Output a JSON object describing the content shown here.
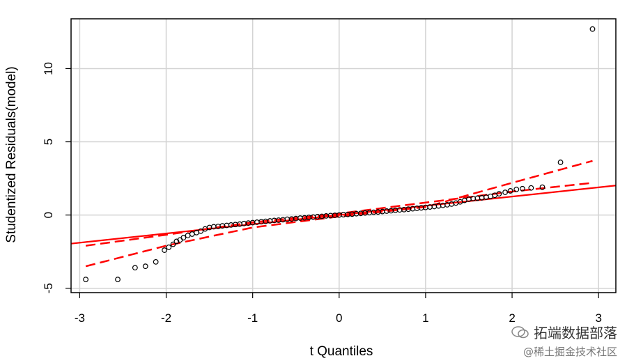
{
  "chart_data": {
    "type": "scatter",
    "xlabel": "t Quantiles",
    "ylabel": "Studentized Residuals(model)",
    "xlim": [
      -3.1,
      3.2
    ],
    "ylim": [
      -5.3,
      13.4
    ],
    "xticks": [
      -3,
      -2,
      -1,
      0,
      1,
      2,
      3
    ],
    "yticks": [
      -5,
      0,
      5,
      10
    ],
    "grid": true,
    "points": [
      [
        -2.93,
        -4.4
      ],
      [
        -2.56,
        -4.4
      ],
      [
        -2.36,
        -3.6
      ],
      [
        -2.24,
        -3.5
      ],
      [
        -2.12,
        -3.2
      ],
      [
        -2.02,
        -2.4
      ],
      [
        -1.97,
        -2.2
      ],
      [
        -1.92,
        -2.0
      ],
      [
        -1.88,
        -1.8
      ],
      [
        -1.84,
        -1.7
      ],
      [
        -1.8,
        -1.55
      ],
      [
        -1.75,
        -1.4
      ],
      [
        -1.7,
        -1.3
      ],
      [
        -1.65,
        -1.2
      ],
      [
        -1.6,
        -1.1
      ],
      [
        -1.55,
        -0.95
      ],
      [
        -1.5,
        -0.85
      ],
      [
        -1.45,
        -0.8
      ],
      [
        -1.4,
        -0.78
      ],
      [
        -1.35,
        -0.74
      ],
      [
        -1.3,
        -0.71
      ],
      [
        -1.25,
        -0.68
      ],
      [
        -1.2,
        -0.65
      ],
      [
        -1.15,
        -0.62
      ],
      [
        -1.1,
        -0.58
      ],
      [
        -1.05,
        -0.55
      ],
      [
        -1.0,
        -0.52
      ],
      [
        -0.95,
        -0.49
      ],
      [
        -0.9,
        -0.46
      ],
      [
        -0.85,
        -0.43
      ],
      [
        -0.8,
        -0.4
      ],
      [
        -0.75,
        -0.37
      ],
      [
        -0.7,
        -0.35
      ],
      [
        -0.65,
        -0.32
      ],
      [
        -0.6,
        -0.29
      ],
      [
        -0.55,
        -0.27
      ],
      [
        -0.5,
        -0.24
      ],
      [
        -0.45,
        -0.21
      ],
      [
        -0.4,
        -0.19
      ],
      [
        -0.35,
        -0.16
      ],
      [
        -0.3,
        -0.14
      ],
      [
        -0.25,
        -0.11
      ],
      [
        -0.2,
        -0.09
      ],
      [
        -0.15,
        -0.06
      ],
      [
        -0.1,
        -0.04
      ],
      [
        -0.05,
        -0.02
      ],
      [
        0.0,
        0.0
      ],
      [
        0.05,
        0.02
      ],
      [
        0.1,
        0.04
      ],
      [
        0.15,
        0.06
      ],
      [
        0.2,
        0.09
      ],
      [
        0.25,
        0.11
      ],
      [
        0.3,
        0.14
      ],
      [
        0.35,
        0.16
      ],
      [
        0.4,
        0.19
      ],
      [
        0.45,
        0.21
      ],
      [
        0.5,
        0.24
      ],
      [
        0.55,
        0.27
      ],
      [
        0.6,
        0.29
      ],
      [
        0.65,
        0.32
      ],
      [
        0.7,
        0.35
      ],
      [
        0.75,
        0.37
      ],
      [
        0.8,
        0.4
      ],
      [
        0.85,
        0.43
      ],
      [
        0.9,
        0.46
      ],
      [
        0.95,
        0.49
      ],
      [
        1.0,
        0.52
      ],
      [
        1.05,
        0.55
      ],
      [
        1.1,
        0.58
      ],
      [
        1.15,
        0.62
      ],
      [
        1.2,
        0.66
      ],
      [
        1.25,
        0.7
      ],
      [
        1.3,
        0.75
      ],
      [
        1.35,
        0.82
      ],
      [
        1.4,
        0.9
      ],
      [
        1.45,
        1.0
      ],
      [
        1.5,
        1.08
      ],
      [
        1.55,
        1.12
      ],
      [
        1.6,
        1.15
      ],
      [
        1.65,
        1.18
      ],
      [
        1.7,
        1.22
      ],
      [
        1.75,
        1.28
      ],
      [
        1.8,
        1.35
      ],
      [
        1.85,
        1.45
      ],
      [
        1.92,
        1.55
      ],
      [
        1.98,
        1.65
      ],
      [
        2.05,
        1.75
      ],
      [
        2.12,
        1.8
      ],
      [
        2.22,
        1.85
      ],
      [
        2.35,
        1.9
      ],
      [
        2.56,
        3.6
      ],
      [
        2.93,
        12.7
      ]
    ],
    "reference_line": {
      "slope": 0.63,
      "intercept": 0.0,
      "color": "#ff0000"
    },
    "envelope_upper": [
      [
        -2.93,
        -2.1
      ],
      [
        -2.0,
        -1.35
      ],
      [
        -1.0,
        -0.5
      ],
      [
        0.0,
        0.1
      ],
      [
        1.0,
        0.85
      ],
      [
        2.0,
        1.6
      ],
      [
        2.93,
        2.2
      ]
    ],
    "envelope_lower": [
      [
        -2.93,
        -3.5
      ],
      [
        -2.0,
        -2.1
      ],
      [
        -1.0,
        -0.85
      ],
      [
        0.0,
        -0.1
      ],
      [
        1.0,
        0.55
      ],
      [
        2.0,
        2.2
      ],
      [
        2.93,
        3.7
      ]
    ],
    "colors": {
      "points": "#000000",
      "lines": "#ff0000",
      "grid": "#d3d3d3"
    }
  },
  "watermark": {
    "line1": "拓端数据部落",
    "line2": "@稀土掘金技术社区"
  }
}
